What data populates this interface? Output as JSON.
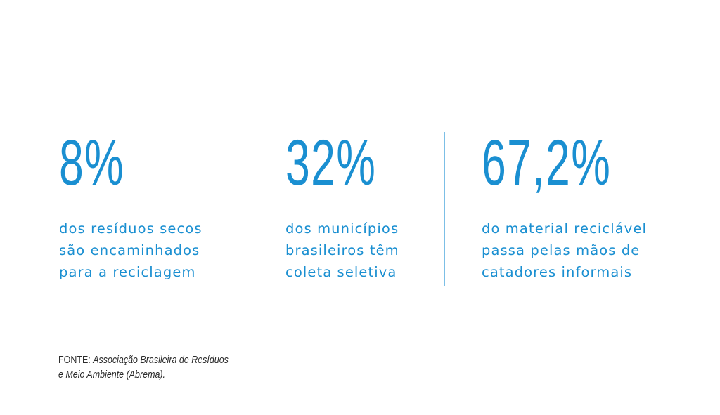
{
  "colors": {
    "accent": "#1a8fd1",
    "divider": "#7cbfe6",
    "source_text": "#2b2b2b"
  },
  "stats": [
    {
      "number": "8%",
      "description": "dos resíduos secos\nsão encaminhados\npara a reciclagem"
    },
    {
      "number": "32%",
      "description": "dos municípios\nbrasileiros têm\ncoleta seletiva"
    },
    {
      "number": "67,2%",
      "description": "do material reciclável\npassa pelas mãos de\ncatadores informais"
    }
  ],
  "source": {
    "label": "FONTE: ",
    "line1": "Associação Brasileira de Resíduos",
    "line2": "e Meio Ambiente (Abrema)."
  }
}
